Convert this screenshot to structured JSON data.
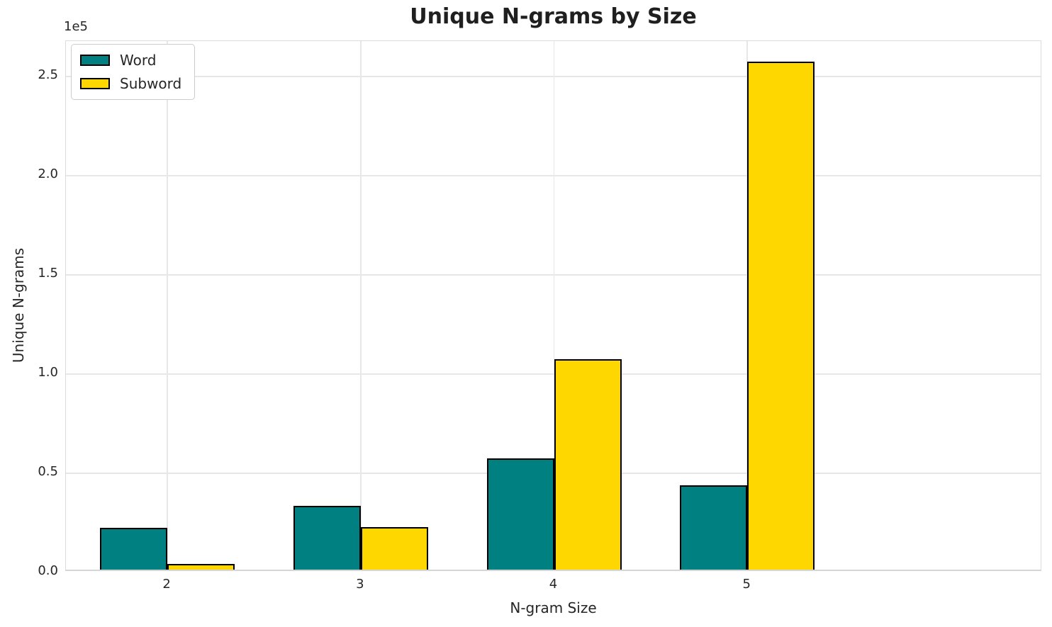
{
  "figure": {
    "title": "Unique N-grams by Size",
    "offset_text": "1e5"
  },
  "chart_data": {
    "type": "bar",
    "title": "Unique N-grams by Size",
    "xlabel": "N-gram Size",
    "ylabel": "Unique N-grams",
    "categories": [
      "2",
      "3",
      "4",
      "5"
    ],
    "series": [
      {
        "name": "Word",
        "color": "#008080",
        "values": [
          21000,
          32000,
          56000,
          42500
        ]
      },
      {
        "name": "Subword",
        "color": "#ffd700",
        "values": [
          3000,
          21500,
          106000,
          256000
        ]
      }
    ],
    "bar_edge_color": "#000000",
    "ylim": [
      0,
      267500
    ],
    "yticks": {
      "values": [
        0,
        50000,
        100000,
        150000,
        200000,
        250000
      ],
      "labels": [
        "0.0",
        "0.5",
        "1.0",
        "1.5",
        "2.0",
        "2.5"
      ]
    },
    "y_offset_label": "1e5",
    "grid": true,
    "grid_color": "#e7e7e7",
    "legend_position": "upper left"
  }
}
